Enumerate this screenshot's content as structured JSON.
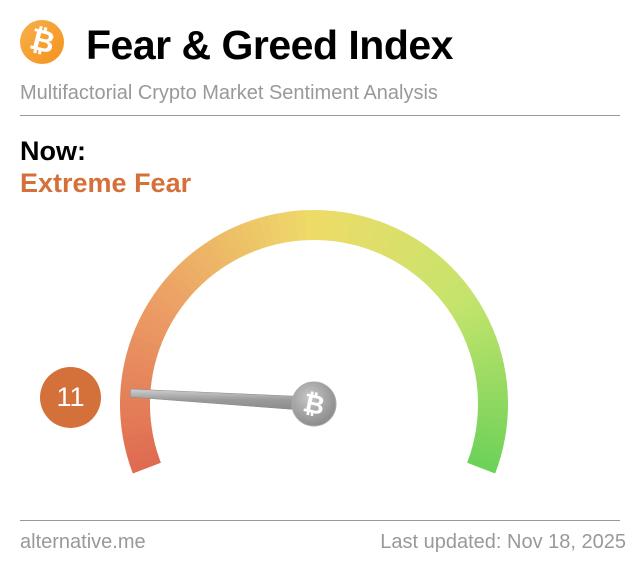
{
  "header": {
    "logo_icon": "bitcoin-icon",
    "title": "Fear & Greed Index",
    "subtitle": "Multifactorial Crypto Market Sentiment Analysis"
  },
  "status": {
    "label": "Now:",
    "classification": "Extreme Fear",
    "value": 11,
    "value_text": "11",
    "color": "#d4703a"
  },
  "gauge": {
    "min": 0,
    "max": 100,
    "value": 11,
    "hub_icon": "bitcoin-icon",
    "colors": [
      "#df6a50",
      "#eca066",
      "#eedb68",
      "#c5e46c",
      "#6cd158"
    ]
  },
  "footer": {
    "source": "alternative.me",
    "updated": "Last updated: Nov 18, 2025"
  }
}
